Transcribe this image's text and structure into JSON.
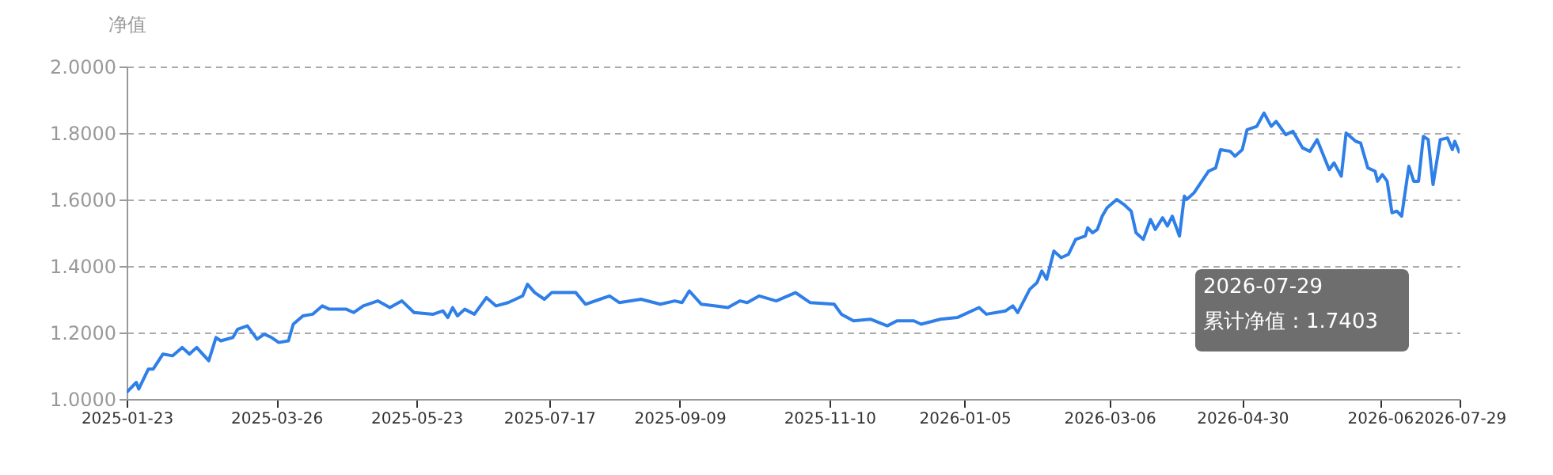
{
  "chart_data": {
    "type": "line",
    "ylabel": "净值",
    "x": [
      "2025-01-23",
      "2025-01-27",
      "2025-01-28",
      "2025-02-01",
      "2025-02-03",
      "2025-02-07",
      "2025-02-11",
      "2025-02-15",
      "2025-02-18",
      "2025-02-21",
      "2025-02-26",
      "2025-03-01",
      "2025-03-03",
      "2025-03-08",
      "2025-03-10",
      "2025-03-14",
      "2025-03-18",
      "2025-03-21",
      "2025-03-24",
      "2025-03-27",
      "2025-03-31",
      "2025-04-02",
      "2025-04-06",
      "2025-04-10",
      "2025-04-14",
      "2025-04-17",
      "2025-04-24",
      "2025-04-27",
      "2025-05-01",
      "2025-05-07",
      "2025-05-12",
      "2025-05-17",
      "2025-05-22",
      "2025-05-30",
      "2025-06-03",
      "2025-06-05",
      "2025-06-07",
      "2025-06-09",
      "2025-06-12",
      "2025-06-16",
      "2025-06-21",
      "2025-06-25",
      "2025-06-30",
      "2025-07-06",
      "2025-07-08",
      "2025-07-11",
      "2025-07-15",
      "2025-07-18",
      "2025-07-28",
      "2025-08-01",
      "2025-08-07",
      "2025-08-11",
      "2025-08-15",
      "2025-08-24",
      "2025-09-01",
      "2025-09-07",
      "2025-09-10",
      "2025-09-13",
      "2025-09-18",
      "2025-09-24",
      "2025-09-29",
      "2025-10-04",
      "2025-10-07",
      "2025-10-12",
      "2025-10-19",
      "2025-10-27",
      "2025-11-02",
      "2025-11-12",
      "2025-11-15",
      "2025-11-20",
      "2025-11-27",
      "2025-12-04",
      "2025-12-08",
      "2025-12-15",
      "2025-12-18",
      "2025-12-26",
      "2026-01-02",
      "2026-01-11",
      "2026-01-14",
      "2026-01-22",
      "2026-01-25",
      "2026-01-27",
      "2026-02-01",
      "2026-02-04",
      "2026-02-06",
      "2026-02-08",
      "2026-02-11",
      "2026-02-14",
      "2026-02-17",
      "2026-02-20",
      "2026-02-24",
      "2026-02-25",
      "2026-02-27",
      "2026-03-01",
      "2026-03-03",
      "2026-03-05",
      "2026-03-09",
      "2026-03-12",
      "2026-03-15",
      "2026-03-17",
      "2026-03-20",
      "2026-03-23",
      "2026-03-25",
      "2026-03-28",
      "2026-03-30",
      "2026-04-01",
      "2026-04-04",
      "2026-04-06",
      "2026-04-07",
      "2026-04-10",
      "2026-04-16",
      "2026-04-19",
      "2026-04-21",
      "2026-04-25",
      "2026-04-27",
      "2026-04-30",
      "2026-05-02",
      "2026-05-06",
      "2026-05-09",
      "2026-05-12",
      "2026-05-14",
      "2026-05-18",
      "2026-05-21",
      "2026-05-25",
      "2026-05-28",
      "2026-05-31",
      "2026-06-05",
      "2026-06-07",
      "2026-06-10",
      "2026-06-12",
      "2026-06-16",
      "2026-06-18",
      "2026-06-21",
      "2026-06-24",
      "2026-06-25",
      "2026-06-27",
      "2026-06-29",
      "2026-07-01",
      "2026-07-03",
      "2026-07-05",
      "2026-07-08",
      "2026-07-10",
      "2026-07-12",
      "2026-07-14",
      "2026-07-16",
      "2026-07-18",
      "2026-07-21",
      "2026-07-24",
      "2026-07-26",
      "2026-07-27",
      "2026-07-29"
    ],
    "series": [
      {
        "color": "#2f7fe8",
        "values": [
          1.02,
          1.05,
          1.03,
          1.09,
          1.09,
          1.135,
          1.13,
          1.155,
          1.135,
          1.155,
          1.115,
          1.185,
          1.175,
          1.185,
          1.21,
          1.22,
          1.18,
          1.195,
          1.185,
          1.17,
          1.175,
          1.225,
          1.25,
          1.255,
          1.28,
          1.27,
          1.27,
          1.26,
          1.28,
          1.295,
          1.275,
          1.295,
          1.26,
          1.255,
          1.265,
          1.245,
          1.275,
          1.25,
          1.27,
          1.255,
          1.305,
          1.28,
          1.29,
          1.31,
          1.345,
          1.32,
          1.3,
          1.32,
          1.32,
          1.285,
          1.3,
          1.31,
          1.29,
          1.3,
          1.285,
          1.295,
          1.29,
          1.325,
          1.285,
          1.28,
          1.275,
          1.295,
          1.29,
          1.31,
          1.295,
          1.32,
          1.29,
          1.285,
          1.255,
          1.235,
          1.24,
          1.22,
          1.235,
          1.235,
          1.225,
          1.24,
          1.245,
          1.275,
          1.255,
          1.265,
          1.28,
          1.26,
          1.33,
          1.35,
          1.385,
          1.36,
          1.445,
          1.425,
          1.435,
          1.48,
          1.49,
          1.515,
          1.5,
          1.51,
          1.55,
          1.575,
          1.6,
          1.585,
          1.565,
          1.5,
          1.48,
          1.54,
          1.51,
          1.545,
          1.52,
          1.55,
          1.49,
          1.61,
          1.6,
          1.62,
          1.685,
          1.695,
          1.75,
          1.745,
          1.73,
          1.75,
          1.81,
          1.82,
          1.86,
          1.82,
          1.835,
          1.795,
          1.805,
          1.755,
          1.745,
          1.78,
          1.69,
          1.71,
          1.67,
          1.8,
          1.775,
          1.77,
          1.695,
          1.685,
          1.655,
          1.675,
          1.655,
          1.56,
          1.565,
          1.55,
          1.7,
          1.655,
          1.655,
          1.79,
          1.78,
          1.645,
          1.78,
          1.785,
          1.75,
          1.775,
          1.74
        ]
      }
    ],
    "xlim": [
      "2025-01-23",
      "2026-07-29"
    ],
    "xticks": [
      "2025-01-23",
      "2025-03-26",
      "2025-05-23",
      "2025-07-17",
      "2025-09-09",
      "2025-11-10",
      "2026-01-05",
      "2026-03-06",
      "2026-04-30",
      {
        "value": "2026-06-26",
        "label": "2026-06"
      },
      "2026-07-29"
    ],
    "ylim": [
      1.0,
      2.0
    ],
    "yticks": [
      {
        "value": 1.0,
        "label": "1.0000"
      },
      {
        "value": 1.2,
        "label": "1.2000"
      },
      {
        "value": 1.4,
        "label": "1.4000"
      },
      {
        "value": 1.6,
        "label": "1.6000"
      },
      {
        "value": 1.8,
        "label": "1.8000"
      },
      {
        "value": 2.0,
        "label": "2.0000"
      }
    ],
    "grid": "y",
    "line_style": "solid",
    "marker": "none",
    "annotations": [
      "2026-07-29",
      "累计净值：1.7403"
    ]
  }
}
